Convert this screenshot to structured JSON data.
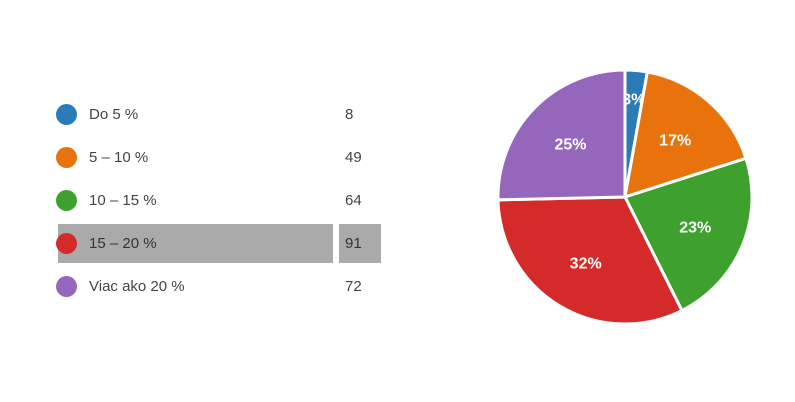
{
  "chart_data": {
    "type": "pie",
    "categories": [
      "Do 5 %",
      "5 – 10 %",
      "10 – 15 %",
      "15 – 20 %",
      "Viac ako 20 %"
    ],
    "values": [
      8,
      49,
      64,
      91,
      72
    ],
    "percent_labels": [
      "3%",
      "17%",
      "23%",
      "32%",
      "25%"
    ],
    "colors": [
      "#2c7bb6",
      "#e8730c",
      "#3ea12e",
      "#d42a2a",
      "#9467bd"
    ],
    "selected_category": "15 – 20 %",
    "legend_placement": "left"
  },
  "legend": {
    "items": [
      {
        "label": "Do 5 %",
        "count": "8",
        "color": "#2c7bb6"
      },
      {
        "label": "5 – 10 %",
        "count": "49",
        "color": "#e8730c"
      },
      {
        "label": "10 – 15 %",
        "count": "64",
        "color": "#3ea12e"
      },
      {
        "label": "15 – 20 %",
        "count": "91",
        "color": "#d42a2a"
      },
      {
        "label": "Viac ako 20 %",
        "count": "72",
        "color": "#9467bd"
      }
    ]
  }
}
